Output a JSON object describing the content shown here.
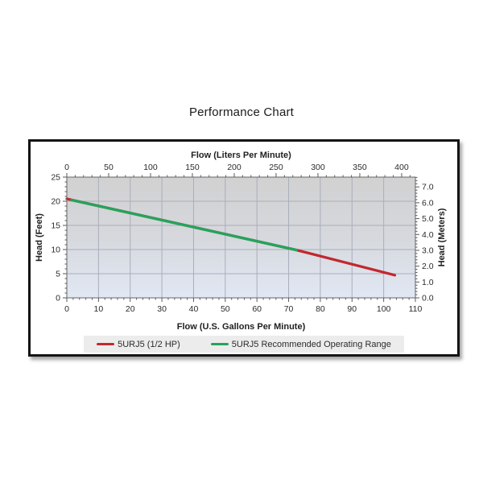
{
  "chart_data": {
    "type": "line",
    "title": "Performance Chart",
    "grid": {
      "x_step_gpm": 10,
      "y_step_feet": 5,
      "grid_on": true
    },
    "axes": {
      "bottom": {
        "label": "Flow (U.S. Gallons Per Minute)",
        "min": 0,
        "max": 110,
        "major_ticks": [
          0,
          10,
          20,
          30,
          40,
          50,
          60,
          70,
          80,
          90,
          100,
          110
        ],
        "minor_step": 2,
        "decimals": 0
      },
      "top": {
        "label": "Flow (Liters Per Minute)",
        "min": 0,
        "max": 416.4,
        "major_ticks": [
          0,
          50,
          100,
          150,
          200,
          250,
          300,
          350,
          400
        ],
        "minor_step": 10,
        "decimals": 0
      },
      "left": {
        "label": "Head (Feet)",
        "min": 0,
        "max": 25,
        "major_ticks": [
          0,
          5,
          10,
          15,
          20,
          25
        ],
        "minor_step": 1,
        "decimals": 0
      },
      "right": {
        "label": "Head (Meters)",
        "min": 0,
        "max": 7.62,
        "major_ticks": [
          0,
          1,
          2,
          3,
          4,
          5,
          6,
          7
        ],
        "minor_step": 0.2,
        "decimals": 1
      }
    },
    "series": [
      {
        "name": "5URJ5 (1/2 HP)",
        "color": "#c2282e",
        "points_gpm_feet": [
          [
            0,
            20.5
          ],
          [
            72.5,
            9.9
          ],
          [
            103.5,
            4.7
          ]
        ]
      },
      {
        "name": "5URJ5 Recommended Operating Range",
        "color": "#24a45c",
        "points_gpm_feet": [
          [
            1.5,
            20.25
          ],
          [
            72.5,
            9.9
          ]
        ]
      }
    ],
    "legend": {
      "position": "bottom-center"
    }
  }
}
